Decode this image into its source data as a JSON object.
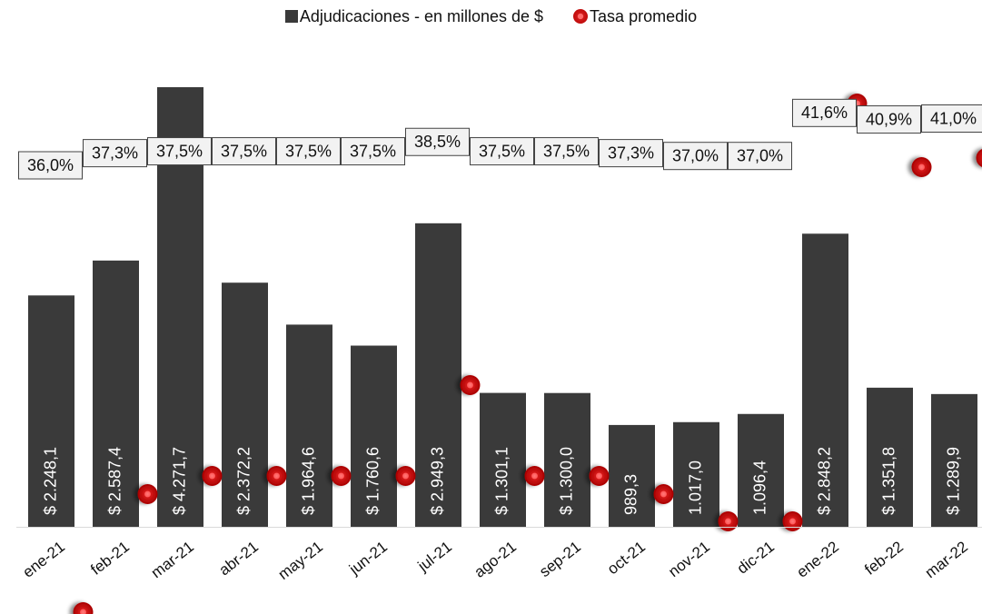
{
  "legend": {
    "bars_label": "Adjudicaciones - en millones de $",
    "rate_label": "Tasa promedio"
  },
  "colors": {
    "bar": "#3a3a3a",
    "marker": "#c00000",
    "label_box": "#f2f2f2"
  },
  "chart_data": {
    "type": "bar",
    "categories": [
      "ene-21",
      "feb-21",
      "mar-21",
      "abr-21",
      "may-21",
      "jun-21",
      "jul-21",
      "ago-21",
      "sep-21",
      "oct-21",
      "nov-21",
      "dic-21",
      "ene-22",
      "feb-22",
      "mar-22"
    ],
    "series": [
      {
        "name": "Adjudicaciones - en millones de $",
        "type": "bar",
        "axis": "left",
        "values": [
          2248.1,
          2587.4,
          4271.7,
          2372.2,
          1964.6,
          1760.6,
          2949.3,
          1301.1,
          1300.0,
          989.3,
          1017.0,
          1096.4,
          2848.2,
          1351.8,
          1289.9
        ],
        "labels": [
          "$ 2.248,1",
          "$ 2.587,4",
          "$ 4.271,7",
          "$ 2.372,2",
          "$ 1.964,6",
          "$ 1.760,6",
          "$ 2.949,3",
          "$ 1.301,1",
          "$ 1.300,0",
          "989,3",
          "1.017,0",
          "1.096,4",
          "$ 2.848,2",
          "$ 1.351,8",
          "$ 1.289,9"
        ]
      },
      {
        "name": "Tasa promedio",
        "type": "line-markers",
        "axis": "right",
        "values": [
          36.0,
          37.3,
          37.5,
          37.5,
          37.5,
          37.5,
          38.5,
          37.5,
          37.5,
          37.3,
          37.0,
          37.0,
          41.6,
          40.9,
          41.0
        ],
        "labels": [
          "36,0%",
          "37,3%",
          "37,5%",
          "37,5%",
          "37,5%",
          "37,5%",
          "38,5%",
          "37,5%",
          "37,5%",
          "37,3%",
          "37,0%",
          "37,0%",
          "41,6%",
          "40,9%",
          "41,0%"
        ]
      }
    ],
    "ylim": [
      0,
      4400
    ],
    "y2lim": [
      30,
      45
    ],
    "grid": false,
    "legend_position": "top-center"
  }
}
